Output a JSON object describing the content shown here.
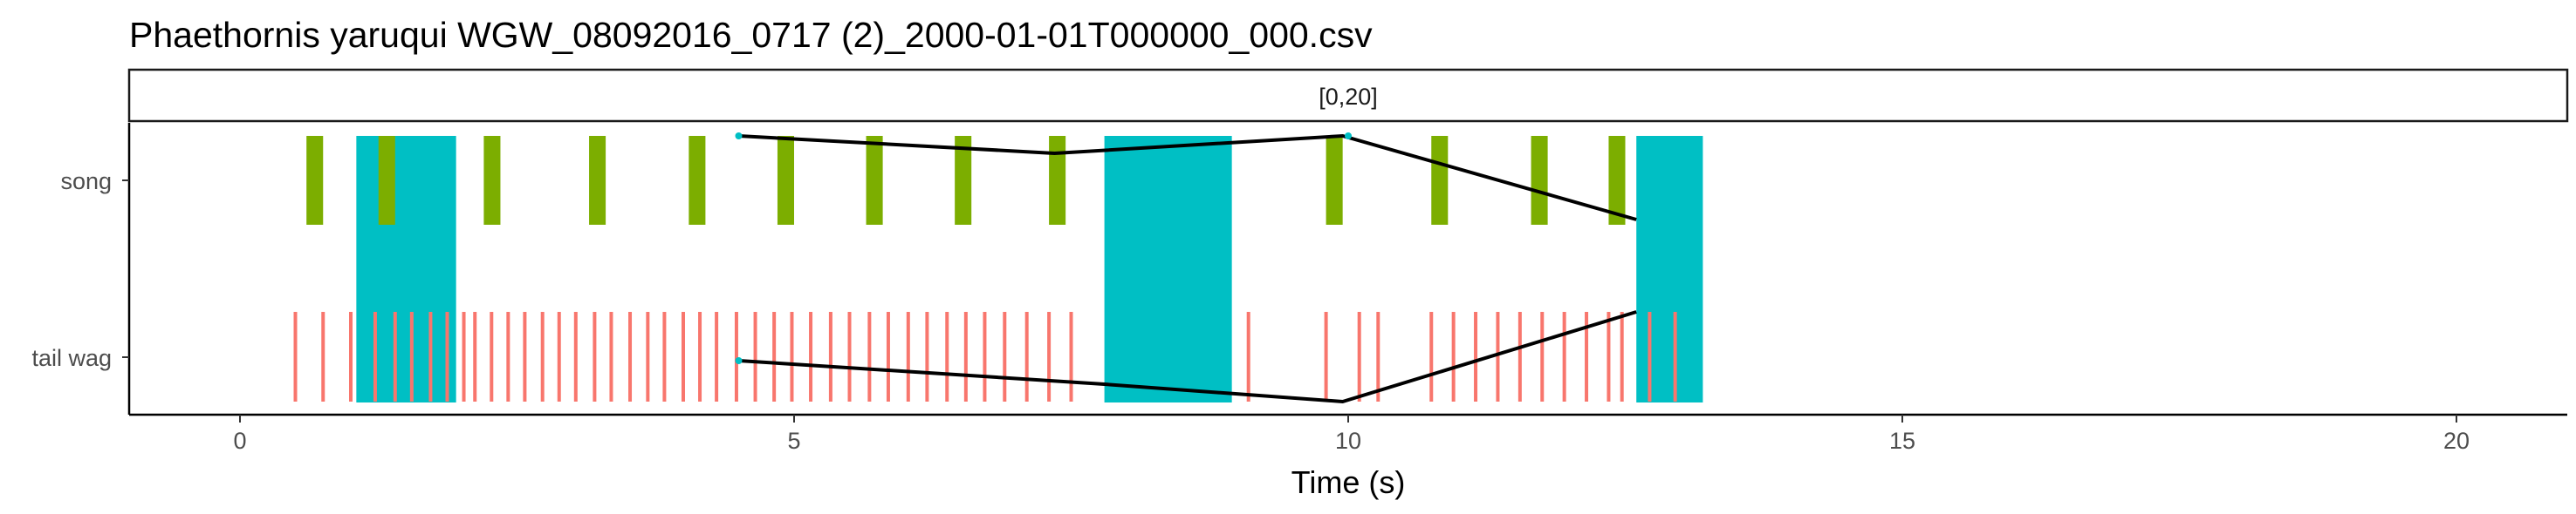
{
  "chart_data": {
    "type": "timeline",
    "title": "Phaethornis yaruqui   WGW_08092016_0717 (2)_2000-01-01T000000_000.csv",
    "facet_label": "[0,20]",
    "xlabel": "Time (s)",
    "ylabel": "",
    "xlim": [
      -1,
      21
    ],
    "x_ticks": [
      0,
      5,
      10,
      15,
      20
    ],
    "x_tick_labels": [
      "0",
      "5",
      "10",
      "15",
      "20"
    ],
    "y_categories": [
      "song",
      "tail wag"
    ],
    "grid": false,
    "legend": "none",
    "colors": {
      "song": "#7CAE00",
      "tail_wag": "#F8766D",
      "highlight": "#00BFC4",
      "line": "#000000"
    },
    "highlight_spans": [
      {
        "start": 1.05,
        "end": 1.95
      },
      {
        "start": 7.8,
        "end": 8.95
      },
      {
        "start": 12.6,
        "end": 13.2
      }
    ],
    "song_events": [
      {
        "start": 0.6,
        "end": 0.75
      },
      {
        "start": 1.25,
        "end": 1.4
      },
      {
        "start": 2.2,
        "end": 2.35
      },
      {
        "start": 3.15,
        "end": 3.3
      },
      {
        "start": 4.05,
        "end": 4.2
      },
      {
        "start": 4.85,
        "end": 5.0
      },
      {
        "start": 5.65,
        "end": 5.8
      },
      {
        "start": 6.45,
        "end": 6.6
      },
      {
        "start": 7.3,
        "end": 7.45
      },
      {
        "start": 9.8,
        "end": 9.95
      },
      {
        "start": 10.75,
        "end": 10.9
      },
      {
        "start": 11.65,
        "end": 11.8
      },
      {
        "start": 12.35,
        "end": 12.5
      }
    ],
    "tailwag_events": [
      0.5,
      0.75,
      1.0,
      1.22,
      1.4,
      1.55,
      1.72,
      1.87,
      2.02,
      2.12,
      2.27,
      2.42,
      2.57,
      2.73,
      2.88,
      3.03,
      3.2,
      3.35,
      3.52,
      3.68,
      3.83,
      4.0,
      4.15,
      4.3,
      4.48,
      4.65,
      4.82,
      4.98,
      5.15,
      5.33,
      5.5,
      5.68,
      5.85,
      6.03,
      6.2,
      6.38,
      6.55,
      6.72,
      6.9,
      7.1,
      7.3,
      7.5,
      9.1,
      9.8,
      10.1,
      10.27,
      10.75,
      10.95,
      11.15,
      11.35,
      11.55,
      11.75,
      11.95,
      12.15,
      12.35,
      12.47,
      12.72,
      12.95
    ],
    "line_series": [
      {
        "name": "",
        "points": [
          [
            4.5,
            "song_top"
          ],
          [
            7.35,
            "song_mid"
          ],
          [
            9.95,
            "song_top"
          ],
          [
            12.6,
            "song_low"
          ]
        ]
      },
      {
        "name": "",
        "points": [
          [
            4.5,
            "wag_mid"
          ],
          [
            7.8,
            "wag_low"
          ],
          [
            9.95,
            "wag_bottom"
          ],
          [
            12.6,
            "wag_top"
          ]
        ]
      }
    ],
    "line_markers": [
      {
        "x": 4.5,
        "row": "song"
      },
      {
        "x": 10.0,
        "row": "song"
      },
      {
        "x": 4.5,
        "row": "tail wag"
      }
    ]
  }
}
